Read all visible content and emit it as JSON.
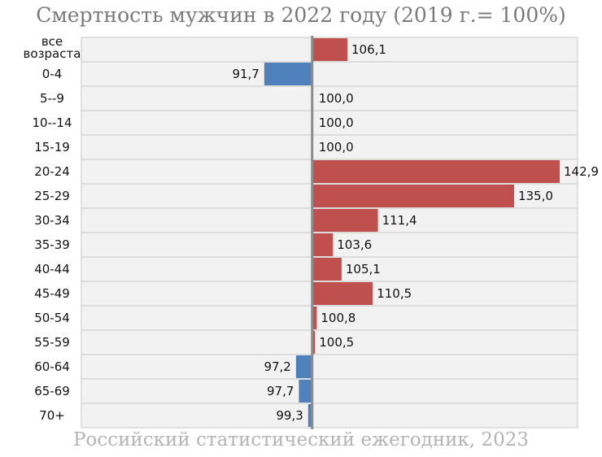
{
  "chart_data": {
    "type": "bar",
    "orientation": "horizontal",
    "title": "Смертность мужчин в 2022 году (2019 г.= 100%)",
    "source": "Российский статистический ежегодник, 2023",
    "baseline": 100,
    "xlim": [
      60,
      146
    ],
    "grid": false,
    "categories": [
      "все возраста",
      "0-4",
      "5--9",
      "10--14",
      "15-19",
      "20-24",
      "25-29",
      "30-34",
      "35-39",
      "40-44",
      "45-49",
      "50-54",
      "55-59",
      "60-64",
      "65-69",
      "70+"
    ],
    "values": [
      106.1,
      91.7,
      100.0,
      100.0,
      100.0,
      142.9,
      135.0,
      111.4,
      103.6,
      105.1,
      110.5,
      100.8,
      100.5,
      97.2,
      97.7,
      99.3
    ],
    "value_labels": [
      "106,1",
      "91,7",
      "100,0",
      "100,0",
      "100,0",
      "142,9",
      "135,0",
      "111,4",
      "103,6",
      "105,1",
      "110,5",
      "100,8",
      "100,5",
      "97,2",
      "97,7",
      "99,3"
    ],
    "colors": {
      "above": "#c0504d",
      "below": "#4f81bd",
      "band": "#f2f2f2",
      "band_border": "#c8c8c8",
      "axis": "#8c8c8c"
    }
  }
}
